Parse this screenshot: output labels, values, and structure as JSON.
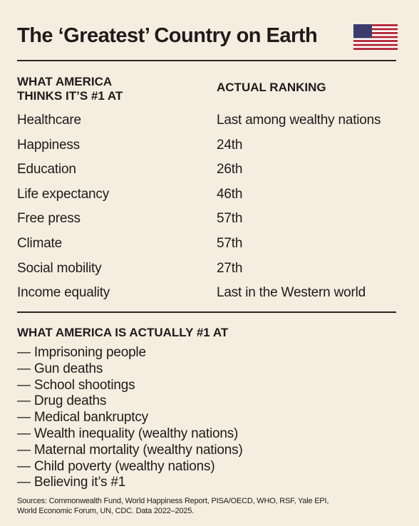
{
  "header": {
    "title": "The ‘Greatest’ Country on Earth"
  },
  "table": {
    "headers": [
      "WHAT AMERICA\nTHINKS IT’S #1 AT",
      "ACTUAL RANKING"
    ],
    "rows": [
      [
        "Healthcare",
        "Last among wealthy nations"
      ],
      [
        "Happiness",
        "24th"
      ],
      [
        "Education",
        "26th"
      ],
      [
        "Life expectancy",
        "46th"
      ],
      [
        "Free press",
        "57th"
      ],
      [
        "Climate",
        "57th"
      ],
      [
        "Social mobility",
        "27th"
      ],
      [
        "Income equality",
        "Last in the Western world"
      ]
    ]
  },
  "list": {
    "title": "WHAT AMERICA IS ACTUALLY #1 AT",
    "items": [
      "— Imprisoning people",
      "— Gun deaths",
      "— School shootings",
      "— Drug deaths",
      "— Medical bankruptcy",
      "— Wealth inequality (wealthy nations)",
      "— Maternal mortality (wealthy nations)",
      "— Child poverty (wealthy nations)",
      "— Believing it’s #1"
    ]
  },
  "footer": {
    "sources": "Sources: Commonwealth Fund, World Happiness Report, PISA/OECD, WHO, RSF, Yale EPI,\nWorld Economic Forum, UN, CDC. Data 2022–2025."
  }
}
